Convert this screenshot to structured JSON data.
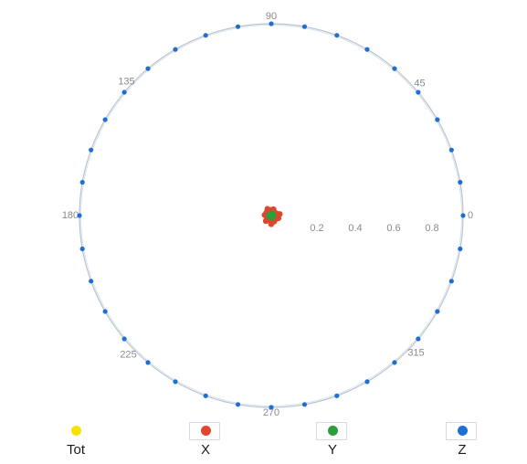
{
  "chart_data": {
    "type": "scatter",
    "coordinate_system": "polar",
    "angular_unit": "degrees",
    "angle_tick_labels": [
      "0",
      "45",
      "90",
      "135",
      "180",
      "225",
      "270",
      "315"
    ],
    "radial_tick_labels": [
      "0.2",
      "0.4",
      "0.6",
      "0.8"
    ],
    "rlim": [
      0,
      1
    ],
    "radial_label_angle": 0,
    "grid": false,
    "legend_position": "bottom",
    "series": [
      {
        "name": "Tot",
        "color": "#f5e20a",
        "points": []
      },
      {
        "name": "X",
        "color": "#e0452e",
        "points": [
          {
            "theta": 0,
            "r": 0.02
          },
          {
            "theta": 20,
            "r": 0.03
          },
          {
            "theta": 45,
            "r": 0.025
          },
          {
            "theta": 70,
            "r": 0.035
          },
          {
            "theta": 95,
            "r": 0.03
          },
          {
            "theta": 120,
            "r": 0.04
          },
          {
            "theta": 150,
            "r": 0.03
          },
          {
            "theta": 175,
            "r": 0.035
          },
          {
            "theta": 200,
            "r": 0.025
          },
          {
            "theta": 225,
            "r": 0.04
          },
          {
            "theta": 250,
            "r": 0.03
          },
          {
            "theta": 270,
            "r": 0.045
          },
          {
            "theta": 295,
            "r": 0.035
          },
          {
            "theta": 320,
            "r": 0.03
          },
          {
            "theta": 340,
            "r": 0.04
          },
          {
            "theta": 10,
            "r": 0.045
          },
          {
            "theta": 130,
            "r": 0.02
          },
          {
            "theta": 210,
            "r": 0.015
          },
          {
            "theta": 300,
            "r": 0.02
          },
          {
            "theta": 80,
            "r": 0.015
          }
        ]
      },
      {
        "name": "Y",
        "color": "#2e9e3a",
        "points": [
          {
            "theta": 0,
            "r": 0.01
          },
          {
            "theta": 60,
            "r": 0.012
          },
          {
            "theta": 120,
            "r": 0.01
          },
          {
            "theta": 180,
            "r": 0.012
          },
          {
            "theta": 240,
            "r": 0.01
          },
          {
            "theta": 300,
            "r": 0.012
          },
          {
            "theta": 30,
            "r": 0.005
          },
          {
            "theta": 210,
            "r": 0.005
          }
        ]
      },
      {
        "name": "Z",
        "color": "#1f6fd1",
        "points": [
          {
            "theta": 0,
            "r": 1
          },
          {
            "theta": 10,
            "r": 1
          },
          {
            "theta": 20,
            "r": 1
          },
          {
            "theta": 30,
            "r": 1
          },
          {
            "theta": 40,
            "r": 1
          },
          {
            "theta": 50,
            "r": 1
          },
          {
            "theta": 60,
            "r": 1
          },
          {
            "theta": 70,
            "r": 1
          },
          {
            "theta": 80,
            "r": 1
          },
          {
            "theta": 90,
            "r": 1
          },
          {
            "theta": 100,
            "r": 1
          },
          {
            "theta": 110,
            "r": 1
          },
          {
            "theta": 120,
            "r": 1
          },
          {
            "theta": 130,
            "r": 1
          },
          {
            "theta": 140,
            "r": 1
          },
          {
            "theta": 150,
            "r": 1
          },
          {
            "theta": 160,
            "r": 1
          },
          {
            "theta": 170,
            "r": 1
          },
          {
            "theta": 180,
            "r": 1
          },
          {
            "theta": 190,
            "r": 1
          },
          {
            "theta": 200,
            "r": 1
          },
          {
            "theta": 210,
            "r": 1
          },
          {
            "theta": 220,
            "r": 1
          },
          {
            "theta": 230,
            "r": 1
          },
          {
            "theta": 240,
            "r": 1
          },
          {
            "theta": 250,
            "r": 1
          },
          {
            "theta": 260,
            "r": 1
          },
          {
            "theta": 270,
            "r": 1
          },
          {
            "theta": 280,
            "r": 1
          },
          {
            "theta": 290,
            "r": 1
          },
          {
            "theta": 300,
            "r": 1
          },
          {
            "theta": 310,
            "r": 1
          },
          {
            "theta": 320,
            "r": 1
          },
          {
            "theta": 330,
            "r": 1
          },
          {
            "theta": 340,
            "r": 1
          },
          {
            "theta": 350,
            "r": 1
          }
        ]
      }
    ]
  }
}
